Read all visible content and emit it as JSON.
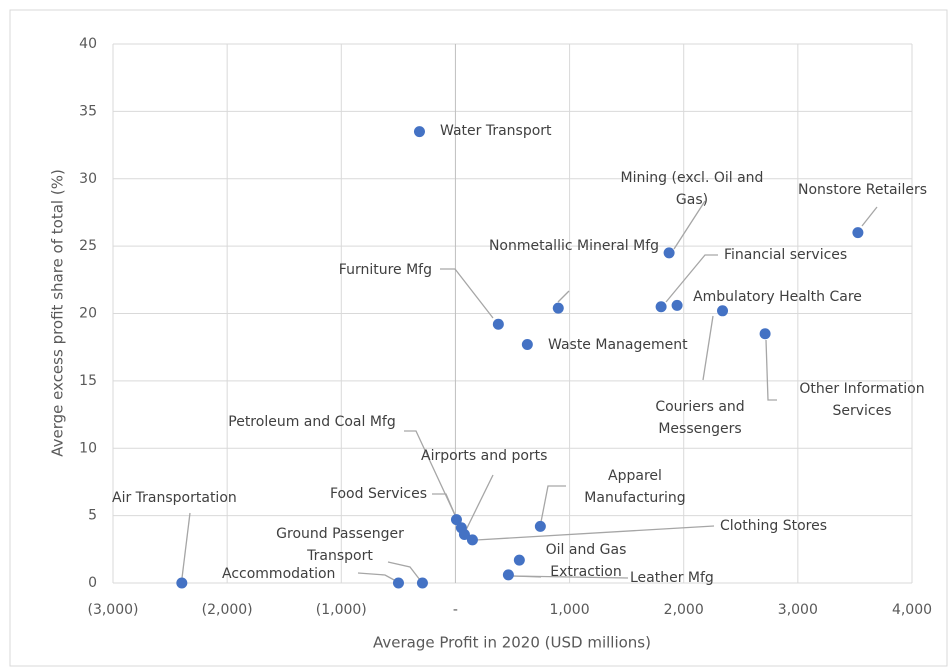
{
  "chart_data": {
    "type": "scatter",
    "color": "#4472c4",
    "x_label": "Average Profit in 2020 (USD millions)",
    "y_label": "Averge  excess profit share of total (%)",
    "xlim": [
      -3000,
      4000
    ],
    "xticks": [
      {
        "value": -3000,
        "label": "(3,000)"
      },
      {
        "value": -2000,
        "label": "(2,000)"
      },
      {
        "value": -1000,
        "label": "(1,000)"
      },
      {
        "value": 0,
        "label": "-"
      },
      {
        "value": 1000,
        "label": "1,000"
      },
      {
        "value": 2000,
        "label": "2,000"
      },
      {
        "value": 3000,
        "label": "3,000"
      },
      {
        "value": 4000,
        "label": "4,000"
      }
    ],
    "ylim": [
      0,
      40
    ],
    "yticks": [
      0,
      5,
      10,
      15,
      20,
      25,
      30,
      35,
      40
    ],
    "grid": true,
    "labels": [
      "Water Transport",
      "Nonstore Retailers",
      "Mining (excl. Oil and Gas)",
      "Financial services",
      "Ambulatory Health Care",
      "Nonmetallic Mineral Mfg",
      "Furniture Mfg",
      "Waste Management",
      "Couriers and Messengers",
      "Other Information Services",
      "Air Transportation",
      "Accommodation",
      "Ground Passenger Transport",
      "Leather Mfg",
      "Oil and Gas Extraction",
      "Petroleum and Coal Mfg",
      "Food Services",
      "Airports and ports",
      "Apparel Manufacturing",
      "Clothing Stores"
    ],
    "x": [
      -315,
      3526,
      1872,
      1802,
      1942,
      901,
      376,
      630,
      2340,
      2713,
      -2397,
      -499,
      -289,
      464,
      560,
      9,
      52,
      79,
      744,
      149
    ],
    "values": [
      33.5,
      26.0,
      24.5,
      20.5,
      20.6,
      20.4,
      19.2,
      17.7,
      20.2,
      18.5,
      0,
      0,
      0,
      0.6,
      1.7,
      4.7,
      4.1,
      3.6,
      4.2,
      3.2
    ]
  }
}
